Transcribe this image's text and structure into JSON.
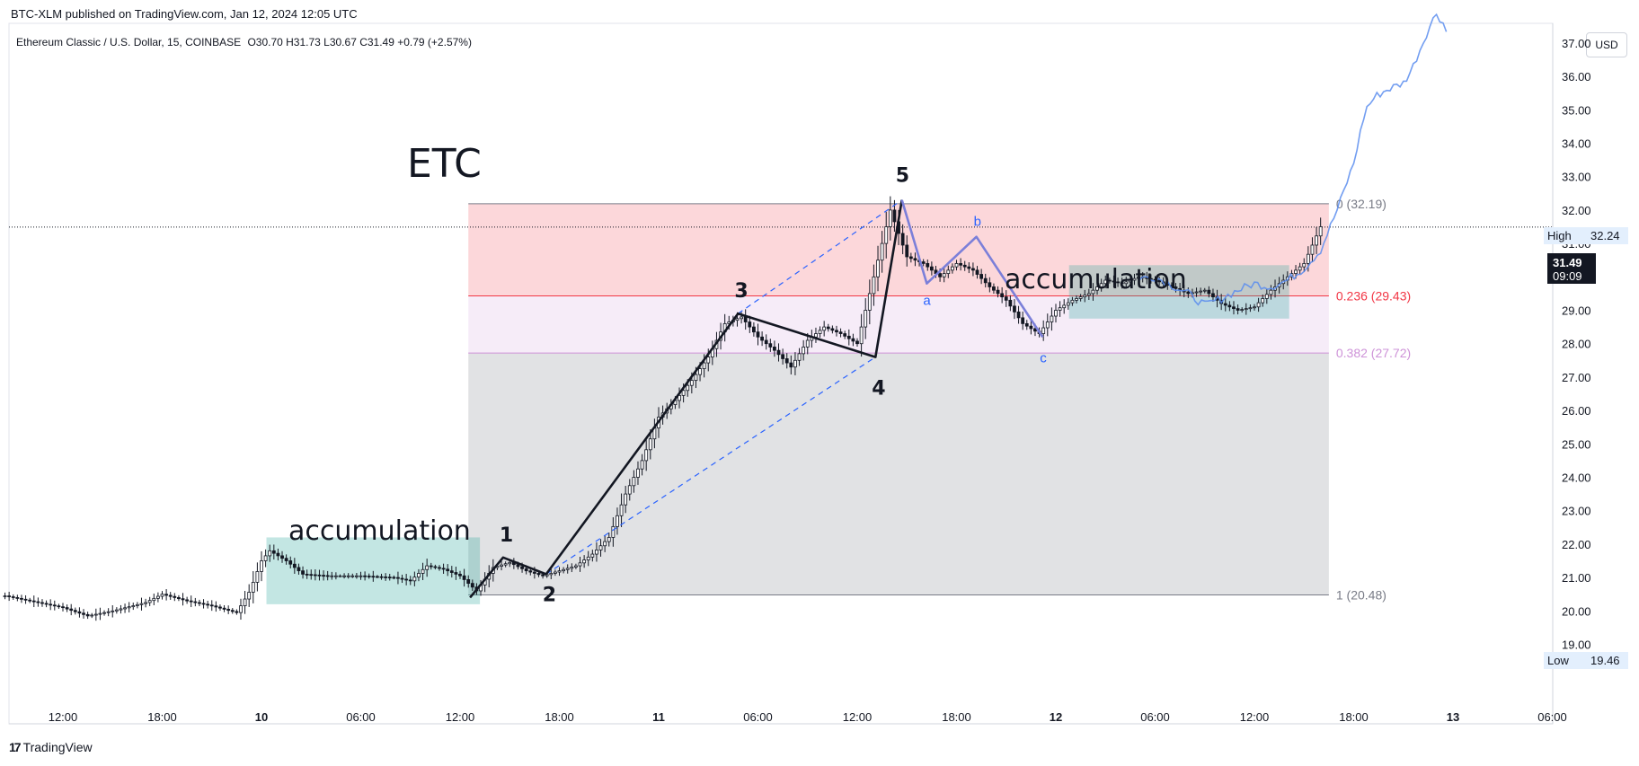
{
  "header": {
    "published": "BTC-XLM published on TradingView.com, Jan 12, 2024 12:05 UTC",
    "instrument": "Ethereum Classic / U.S. Dollar, 15, COINBASE",
    "ohlc": "O30.70 H31.73 L30.67 C31.49 +0.79 (+2.57%)"
  },
  "currency_button": "USD",
  "branding": {
    "name": "TradingView",
    "logo_icon": "tradingview-logo-icon"
  },
  "colors": {
    "candle": "#131722",
    "fib_red": "#f23645",
    "fib_violet": "#ce93d8",
    "fib_grey": "#787b86",
    "accumulation": "#26a69a",
    "projection": "#5b8def",
    "wave": "#131722",
    "correction": "#7b7fd9"
  },
  "chart_data": {
    "type": "candlestick",
    "title": "ETC",
    "yaxis": {
      "range": [
        18.5,
        38.3
      ],
      "ticks": [
        "19.00",
        "20.00",
        "21.00",
        "22.00",
        "23.00",
        "24.00",
        "25.00",
        "26.00",
        "27.00",
        "28.00",
        "29.00",
        "30.00",
        "31.00",
        "32.00",
        "33.00",
        "34.00",
        "35.00",
        "36.00",
        "37.00"
      ]
    },
    "xaxis": {
      "ticks": [
        {
          "label": "12:00",
          "h": 12
        },
        {
          "label": "18:00",
          "h": 18
        },
        {
          "label": "10",
          "h": 24
        },
        {
          "label": "06:00",
          "h": 30
        },
        {
          "label": "12:00",
          "h": 36
        },
        {
          "label": "18:00",
          "h": 42
        },
        {
          "label": "11",
          "h": 48
        },
        {
          "label": "06:00",
          "h": 54
        },
        {
          "label": "12:00",
          "h": 60
        },
        {
          "label": "18:00",
          "h": 66
        },
        {
          "label": "12",
          "h": 72
        },
        {
          "label": "06:00",
          "h": 78
        },
        {
          "label": "12:00",
          "h": 84
        },
        {
          "label": "18:00",
          "h": 90
        },
        {
          "label": "13",
          "h": 96
        },
        {
          "label": "06:00",
          "h": 102
        }
      ]
    },
    "price_path": [
      [
        8.5,
        20.45
      ],
      [
        10,
        20.3
      ],
      [
        12,
        20.1
      ],
      [
        13.5,
        19.85
      ],
      [
        15,
        20.0
      ],
      [
        17,
        20.25
      ],
      [
        18,
        20.5
      ],
      [
        19.5,
        20.3
      ],
      [
        21,
        20.15
      ],
      [
        22.5,
        19.95
      ],
      [
        23.3,
        20.6
      ],
      [
        24,
        21.5
      ],
      [
        24.5,
        21.8
      ],
      [
        25.5,
        21.5
      ],
      [
        26.5,
        21.1
      ],
      [
        28,
        21.05
      ],
      [
        30,
        21.05
      ],
      [
        32,
        21.0
      ],
      [
        33,
        20.9
      ],
      [
        34,
        21.35
      ],
      [
        35,
        21.25
      ],
      [
        36,
        21.05
      ],
      [
        37,
        20.6
      ],
      [
        38,
        21.3
      ],
      [
        39,
        21.45
      ],
      [
        40,
        21.2
      ],
      [
        41,
        21.05
      ],
      [
        42,
        21.2
      ],
      [
        43,
        21.35
      ],
      [
        44,
        21.7
      ],
      [
        45,
        22.2
      ],
      [
        46,
        23.5
      ],
      [
        47,
        24.5
      ],
      [
        48,
        25.8
      ],
      [
        49,
        26.3
      ],
      [
        50,
        26.9
      ],
      [
        51,
        27.6
      ],
      [
        52,
        28.6
      ],
      [
        53,
        28.8
      ],
      [
        54,
        28.2
      ],
      [
        55,
        27.8
      ],
      [
        56,
        27.3
      ],
      [
        57,
        28.1
      ],
      [
        58,
        28.5
      ],
      [
        59,
        28.3
      ],
      [
        60,
        28.0
      ],
      [
        60.5,
        29.0
      ],
      [
        61,
        30.0
      ],
      [
        61.5,
        31.0
      ],
      [
        62,
        32.0
      ],
      [
        62.5,
        31.3
      ],
      [
        63,
        30.6
      ],
      [
        64,
        30.4
      ],
      [
        65,
        30.0
      ],
      [
        66,
        30.4
      ],
      [
        67,
        30.2
      ],
      [
        68,
        29.7
      ],
      [
        69,
        29.3
      ],
      [
        70,
        28.6
      ],
      [
        71,
        28.3
      ],
      [
        72,
        29.0
      ],
      [
        73,
        29.3
      ],
      [
        74,
        29.5
      ],
      [
        75,
        29.9
      ],
      [
        76,
        29.8
      ],
      [
        77,
        30.0
      ],
      [
        78,
        29.9
      ],
      [
        79,
        29.7
      ],
      [
        80,
        29.5
      ],
      [
        81,
        29.6
      ],
      [
        82,
        29.2
      ],
      [
        83,
        29.0
      ],
      [
        84,
        29.1
      ],
      [
        85,
        29.6
      ],
      [
        86,
        30.0
      ],
      [
        87,
        30.4
      ],
      [
        88,
        31.5
      ]
    ],
    "wicks_start_h": 8.5,
    "wicks_end_h": 88,
    "projection_path": [
      [
        77,
        29.95
      ],
      [
        78,
        30.0
      ],
      [
        79,
        29.75
      ],
      [
        80,
        29.5
      ],
      [
        81,
        29.15
      ],
      [
        82,
        29.35
      ],
      [
        83,
        29.6
      ],
      [
        84,
        29.8
      ],
      [
        85,
        29.7
      ],
      [
        86,
        29.9
      ],
      [
        87,
        30.25
      ],
      [
        88,
        30.8
      ],
      [
        89,
        32.0
      ],
      [
        90,
        33.4
      ],
      [
        90.7,
        35.0
      ],
      [
        91.3,
        35.4
      ],
      [
        92,
        35.6
      ],
      [
        93,
        35.8
      ],
      [
        93.5,
        36.2
      ],
      [
        94,
        36.8
      ],
      [
        94.5,
        37.4
      ],
      [
        95,
        37.9
      ],
      [
        95.4,
        37.6
      ],
      [
        95.8,
        37.1
      ]
    ],
    "elliott_wave": {
      "points": [
        [
          36.6,
          20.4
        ],
        [
          38.6,
          21.6
        ],
        [
          41.2,
          21.1
        ],
        [
          52.8,
          28.9
        ],
        [
          61.1,
          27.6
        ],
        [
          62.7,
          32.3
        ]
      ],
      "labels": [
        {
          "text": "1",
          "h": 38.6,
          "y": 21.6
        },
        {
          "text": "2",
          "h": 41.2,
          "y": 21.1
        },
        {
          "text": "3",
          "h": 52.8,
          "y": 28.9
        },
        {
          "text": "4",
          "h": 61.1,
          "y": 27.6
        },
        {
          "text": "5",
          "h": 62.7,
          "y": 32.3
        }
      ],
      "channel": [
        {
          "from": [
            41.2,
            21.1
          ],
          "to": [
            61.1,
            27.6
          ]
        },
        {
          "from": [
            52.8,
            28.9
          ],
          "to": [
            62.7,
            32.3
          ]
        }
      ]
    },
    "correction_wave": {
      "points": [
        [
          62.7,
          32.3
        ],
        [
          64.2,
          29.8
        ],
        [
          67.2,
          31.2
        ],
        [
          71.2,
          28.2
        ]
      ],
      "labels": [
        {
          "text": "a",
          "h": 64.2,
          "y": 29.8
        },
        {
          "text": "b",
          "h": 67.2,
          "y": 31.2
        },
        {
          "text": "c",
          "h": 71.2,
          "y": 28.2
        }
      ]
    },
    "fib": {
      "h_start": 36.5,
      "h_end": 88.5,
      "levels": [
        {
          "label": "0 (32.19)",
          "value": 32.19,
          "color": "#787b86"
        },
        {
          "label": "0.236 (29.43)",
          "value": 29.43,
          "color": "#f23645"
        },
        {
          "label": "0.382 (27.72)",
          "value": 27.72,
          "color": "#ce93d8"
        },
        {
          "label": "1 (20.48)",
          "value": 20.48,
          "color": "#787b86"
        }
      ]
    },
    "accumulation_zones": [
      {
        "h1": 24.3,
        "h2": 37.2,
        "y1": 20.2,
        "y2": 22.2,
        "label": "accumulation"
      },
      {
        "h1": 72.8,
        "h2": 86.1,
        "y1": 28.75,
        "y2": 30.35,
        "label": "accumulation"
      }
    ],
    "price_labels": [
      {
        "label": "High",
        "value": "32.24"
      },
      {
        "label": "",
        "value": "31.49",
        "sub": "09:09"
      },
      {
        "label": "Low",
        "value": "19.46"
      }
    ],
    "current_price": 31.49
  }
}
